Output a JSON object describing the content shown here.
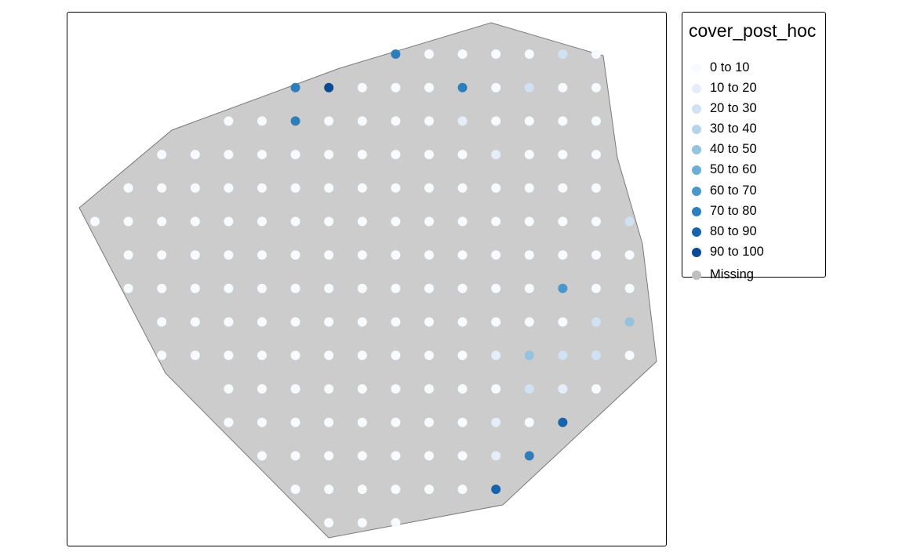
{
  "legend": {
    "title": "cover_post_hoc",
    "items": [
      {
        "label": "0 to 10",
        "color": "#f7fbff"
      },
      {
        "label": "10 to 20",
        "color": "#e3eef9"
      },
      {
        "label": "20 to 30",
        "color": "#cfe1f2"
      },
      {
        "label": "30 to 40",
        "color": "#b5d4e9"
      },
      {
        "label": "40 to 50",
        "color": "#93c3df"
      },
      {
        "label": "50 to 60",
        "color": "#6daed5"
      },
      {
        "label": "60 to 70",
        "color": "#4b97c9"
      },
      {
        "label": "70 to 80",
        "color": "#2f7ebc"
      },
      {
        "label": "80 to 90",
        "color": "#1864aa"
      },
      {
        "label": "90 to 100",
        "color": "#0a4a90"
      },
      {
        "label": "Missing",
        "color": "#bfbfbf"
      }
    ]
  },
  "map": {
    "polygon_fill": "#cccccc",
    "polygon_stroke": "#7a7a7a",
    "point_default_class": 0,
    "point_rows": [
      {
        "row": 0,
        "cols": [
          9,
          10,
          11,
          12,
          13,
          14,
          15
        ]
      },
      {
        "row": 1,
        "cols": [
          6,
          7,
          8,
          9,
          10,
          11,
          12,
          13,
          14,
          15
        ]
      },
      {
        "row": 2,
        "cols": [
          4,
          5,
          6,
          7,
          8,
          9,
          10,
          11,
          12,
          13,
          14,
          15
        ]
      },
      {
        "row": 3,
        "cols": [
          2,
          3,
          4,
          5,
          6,
          7,
          8,
          9,
          10,
          11,
          12,
          13,
          14,
          15
        ]
      },
      {
        "row": 4,
        "cols": [
          1,
          2,
          3,
          4,
          5,
          6,
          7,
          8,
          9,
          10,
          11,
          12,
          13,
          14,
          15
        ]
      },
      {
        "row": 5,
        "cols": [
          0,
          1,
          2,
          3,
          4,
          5,
          6,
          7,
          8,
          9,
          10,
          11,
          12,
          13,
          14,
          15,
          16
        ]
      },
      {
        "row": 6,
        "cols": [
          1,
          2,
          3,
          4,
          5,
          6,
          7,
          8,
          9,
          10,
          11,
          12,
          13,
          14,
          15,
          16
        ]
      },
      {
        "row": 7,
        "cols": [
          1,
          2,
          3,
          4,
          5,
          6,
          7,
          8,
          9,
          10,
          11,
          12,
          13,
          14,
          15,
          16
        ]
      },
      {
        "row": 8,
        "cols": [
          2,
          3,
          4,
          5,
          6,
          7,
          8,
          9,
          10,
          11,
          12,
          13,
          14,
          15,
          16
        ]
      },
      {
        "row": 9,
        "cols": [
          2,
          3,
          4,
          5,
          6,
          7,
          8,
          9,
          10,
          11,
          12,
          13,
          14,
          15,
          16
        ]
      },
      {
        "row": 10,
        "cols": [
          4,
          5,
          6,
          7,
          8,
          9,
          10,
          11,
          12,
          13,
          14,
          15
        ]
      },
      {
        "row": 11,
        "cols": [
          4,
          5,
          6,
          7,
          8,
          9,
          10,
          11,
          12,
          13,
          14
        ]
      },
      {
        "row": 12,
        "cols": [
          5,
          6,
          7,
          8,
          9,
          10,
          11,
          12,
          13
        ]
      },
      {
        "row": 13,
        "cols": [
          6,
          7,
          8,
          9,
          10,
          11,
          12
        ]
      },
      {
        "row": 14,
        "cols": [
          7,
          8,
          9
        ]
      }
    ],
    "point_overrides": [
      {
        "row": 0,
        "col": 9,
        "class": 7
      },
      {
        "row": 0,
        "col": 14,
        "class": 2
      },
      {
        "row": 1,
        "col": 6,
        "class": 7
      },
      {
        "row": 1,
        "col": 7,
        "class": 9
      },
      {
        "row": 1,
        "col": 11,
        "class": 7
      },
      {
        "row": 1,
        "col": 13,
        "class": 2
      },
      {
        "row": 2,
        "col": 6,
        "class": 7
      },
      {
        "row": 2,
        "col": 11,
        "class": 1
      },
      {
        "row": 3,
        "col": 12,
        "class": 1
      },
      {
        "row": 5,
        "col": 16,
        "class": 2
      },
      {
        "row": 7,
        "col": 14,
        "class": 6
      },
      {
        "row": 8,
        "col": 15,
        "class": 2
      },
      {
        "row": 8,
        "col": 16,
        "class": 4
      },
      {
        "row": 9,
        "col": 12,
        "class": 1
      },
      {
        "row": 9,
        "col": 13,
        "class": 4
      },
      {
        "row": 9,
        "col": 14,
        "class": 2
      },
      {
        "row": 9,
        "col": 15,
        "class": 2
      },
      {
        "row": 10,
        "col": 13,
        "class": 2
      },
      {
        "row": 10,
        "col": 14,
        "class": 1
      },
      {
        "row": 11,
        "col": 12,
        "class": 1
      },
      {
        "row": 11,
        "col": 14,
        "class": 8
      },
      {
        "row": 12,
        "col": 12,
        "class": 1
      },
      {
        "row": 12,
        "col": 13,
        "class": 7
      },
      {
        "row": 13,
        "col": 12,
        "class": 8
      }
    ]
  }
}
